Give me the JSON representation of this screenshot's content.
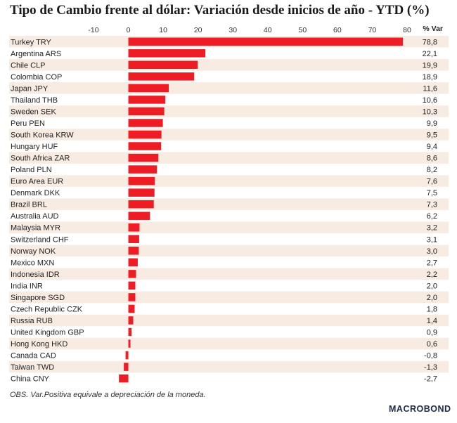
{
  "chart_data": {
    "type": "bar",
    "orientation": "horizontal",
    "title": "Tipo de Cambio frente al dólar: Variación desde inicios de año - YTD (%)",
    "value_column_header": "% Var",
    "xlim": [
      -10,
      80
    ],
    "x_ticks": [
      -10,
      0,
      10,
      20,
      30,
      40,
      50,
      60,
      70,
      80
    ],
    "x_axis_position": "top",
    "bar_color": "#ee1c25",
    "row_band_color": "#f8ebe2",
    "categories": [
      "Turkey TRY",
      "Argentina ARS",
      "Chile CLP",
      "Colombia COP",
      "Japan JPY",
      "Thailand THB",
      "Sweden SEK",
      "Peru PEN",
      "South Korea KRW",
      "Hungary HUF",
      "South Africa ZAR",
      "Poland PLN",
      "Euro Area EUR",
      "Denmark DKK",
      "Brazil BRL",
      "Australia AUD",
      "Malaysia MYR",
      "Switzerland CHF",
      "Norway NOK",
      "Mexico MXN",
      "Indonesia IDR",
      "India INR",
      "Singapore SGD",
      "Czech Republic CZK",
      "Russia RUB",
      "United Kingdom GBP",
      "Hong Kong HKD",
      "Canada CAD",
      "Taiwan TWD",
      "China CNY"
    ],
    "values": [
      78.8,
      22.1,
      19.9,
      18.9,
      11.6,
      10.6,
      10.3,
      9.9,
      9.5,
      9.4,
      8.6,
      8.2,
      7.6,
      7.5,
      7.3,
      6.2,
      3.2,
      3.1,
      3.0,
      2.7,
      2.2,
      2.0,
      2.0,
      1.8,
      1.4,
      0.9,
      0.6,
      -0.8,
      -1.3,
      -2.7
    ],
    "value_labels": [
      "78,8",
      "22,1",
      "19,9",
      "18,9",
      "11,6",
      "10,6",
      "10,3",
      "9,9",
      "9,5",
      "9,4",
      "8,6",
      "8,2",
      "7,6",
      "7,5",
      "7,3",
      "6,2",
      "3,2",
      "3,1",
      "3,0",
      "2,7",
      "2,2",
      "2,0",
      "2,0",
      "1,8",
      "1,4",
      "0,9",
      "0,6",
      "-0,8",
      "-1,3",
      "-2,7"
    ]
  },
  "footnote": "OBS. Var.Positiva equivale a depreciación de la moneda.",
  "logo_text": "MACROBOND"
}
